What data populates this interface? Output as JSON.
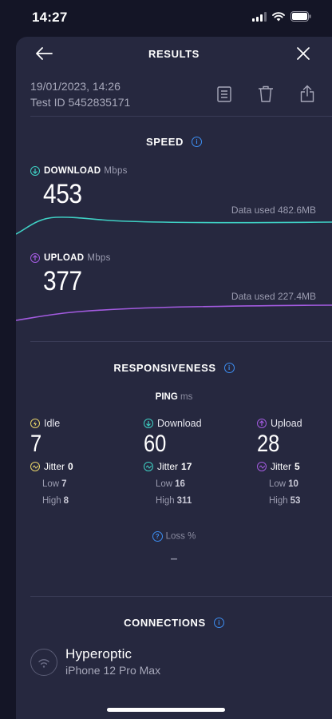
{
  "status_bar": {
    "time": "14:27"
  },
  "header": {
    "title": "RESULTS"
  },
  "test": {
    "datetime": "19/01/2023, 14:26",
    "test_id": "Test ID 5452835171"
  },
  "speed": {
    "title": "SPEED",
    "download": {
      "label": "DOWNLOAD",
      "unit": "Mbps",
      "value": "453",
      "data_used": "Data used 482.6MB",
      "color": "#3fd0c4"
    },
    "upload": {
      "label": "UPLOAD",
      "unit": "Mbps",
      "value": "377",
      "data_used": "Data used 227.4MB",
      "color": "#a35be0"
    }
  },
  "responsiveness": {
    "title": "RESPONSIVENESS",
    "ping_label": "PING",
    "ping_unit": "ms",
    "idle": {
      "label": "Idle",
      "value": "7",
      "jitter_label": "Jitter",
      "jitter": "0",
      "low_label": "Low",
      "low": "7",
      "high_label": "High",
      "high": "8",
      "color": "#e7d36a"
    },
    "download": {
      "label": "Download",
      "value": "60",
      "jitter_label": "Jitter",
      "jitter": "17",
      "low_label": "Low",
      "low": "16",
      "high_label": "High",
      "high": "311",
      "color": "#3fd0c4"
    },
    "upload": {
      "label": "Upload",
      "value": "28",
      "jitter_label": "Jitter",
      "jitter": "5",
      "low_label": "Low",
      "low": "10",
      "high_label": "High",
      "high": "53",
      "color": "#a35be0"
    },
    "loss_label": "Loss %",
    "loss_value": "–"
  },
  "connections": {
    "title": "CONNECTIONS",
    "provider": "Hyperoptic",
    "device": "iPhone 12 Pro Max"
  },
  "colors": {
    "accent_blue": "#3d8ef2",
    "sheet_bg": "#26283f",
    "page_bg": "#141526"
  }
}
